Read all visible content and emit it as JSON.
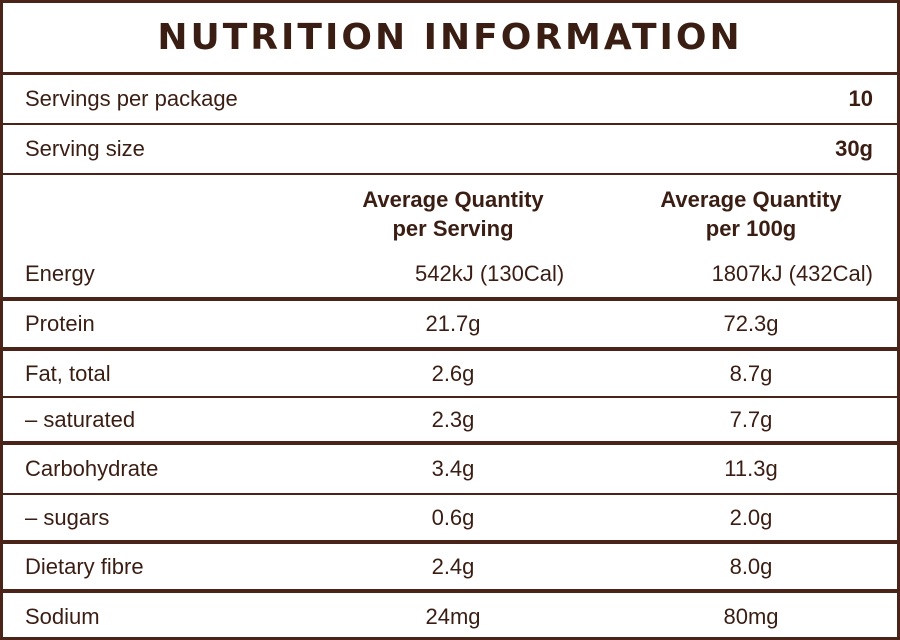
{
  "title": "NUTRITION INFORMATION",
  "servings": {
    "label": "Servings per package",
    "value": "10"
  },
  "serving_size": {
    "label": "Serving size",
    "value": "30g"
  },
  "headers": {
    "per_serving_line1": "Average Quantity",
    "per_serving_line2": "per Serving",
    "per_100g_line1": "Average Quantity",
    "per_100g_line2": "per 100g"
  },
  "rows": [
    {
      "label": "Energy",
      "per_serving": "542kJ (130Cal)",
      "per_100g": "1807kJ (432Cal)"
    },
    {
      "label": "Protein",
      "per_serving": "21.7g",
      "per_100g": "72.3g"
    },
    {
      "label": "Fat, total",
      "per_serving": "2.6g",
      "per_100g": "8.7g"
    },
    {
      "label": "– saturated",
      "per_serving": "2.3g",
      "per_100g": "7.7g"
    },
    {
      "label": "Carbohydrate",
      "per_serving": "3.4g",
      "per_100g": "11.3g"
    },
    {
      "label": "– sugars",
      "per_serving": "0.6g",
      "per_100g": "2.0g"
    },
    {
      "label": "Dietary fibre",
      "per_serving": "2.4g",
      "per_100g": "8.0g"
    },
    {
      "label": "Sodium",
      "per_serving": "24mg",
      "per_100g": "80mg"
    }
  ],
  "colors": {
    "ink": "#3a1e14",
    "rule": "#4a2418",
    "background": "#ffffff"
  }
}
